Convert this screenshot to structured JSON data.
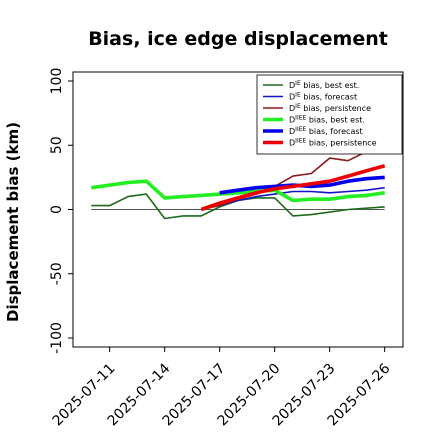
{
  "chart_data": {
    "type": "line",
    "title": "Bias, ice edge displacement",
    "xlabel": "",
    "ylabel": "Displacement bias (km)",
    "ylim": [
      -107,
      107
    ],
    "xlim": [
      "2025-07-09",
      "2025-07-27"
    ],
    "grid": false,
    "legend_position": "top-right",
    "zero_line": true,
    "x_ticks": [
      {
        "date": "2025-07-11",
        "label": "2025-07-11",
        "color": "#000000"
      },
      {
        "date": "2025-07-14",
        "label": "2025-07-14",
        "color": "#000000"
      },
      {
        "date": "2025-07-17",
        "label": "2025-07-17",
        "color": "#2a8a2a"
      },
      {
        "date": "2025-07-20",
        "label": "2025-07-20",
        "color": "#000000"
      },
      {
        "date": "2025-07-23",
        "label": "2025-07-23",
        "color": "#000000"
      },
      {
        "date": "2025-07-26",
        "label": "2025-07-26",
        "color": "#000000"
      }
    ],
    "y_ticks": [
      100,
      50,
      0,
      -50,
      -100
    ],
    "series": [
      {
        "name": "bias, best est.",
        "name_sup": "IE",
        "color": "#1e6b1e",
        "width": 1.6,
        "points": [
          [
            "2025-07-10",
            3
          ],
          [
            "2025-07-11",
            3
          ],
          [
            "2025-07-12",
            10
          ],
          [
            "2025-07-13",
            12
          ],
          [
            "2025-07-14",
            -7
          ],
          [
            "2025-07-15",
            -5
          ],
          [
            "2025-07-16",
            -5
          ],
          [
            "2025-07-17",
            2
          ],
          [
            "2025-07-18",
            7
          ],
          [
            "2025-07-19",
            9
          ],
          [
            "2025-07-20",
            9
          ],
          [
            "2025-07-21",
            -5
          ],
          [
            "2025-07-22",
            -4
          ],
          [
            "2025-07-23",
            -2
          ],
          [
            "2025-07-24",
            0
          ],
          [
            "2025-07-25",
            1
          ],
          [
            "2025-07-26",
            2
          ]
        ]
      },
      {
        "name": "bias, forecast",
        "name_sup": "IE",
        "color": "#1414c8",
        "width": 1.6,
        "points": [
          [
            "2025-07-17",
            3
          ],
          [
            "2025-07-18",
            7
          ],
          [
            "2025-07-19",
            10
          ],
          [
            "2025-07-20",
            12
          ],
          [
            "2025-07-21",
            14
          ],
          [
            "2025-07-22",
            14
          ],
          [
            "2025-07-23",
            13
          ],
          [
            "2025-07-24",
            14
          ],
          [
            "2025-07-25",
            15
          ],
          [
            "2025-07-26",
            17
          ]
        ]
      },
      {
        "name": "bias, persistence",
        "name_sup": "IE",
        "color": "#8b1a1a",
        "width": 1.6,
        "points": [
          [
            "2025-07-16",
            0
          ],
          [
            "2025-07-17",
            3
          ],
          [
            "2025-07-18",
            8
          ],
          [
            "2025-07-19",
            12
          ],
          [
            "2025-07-20",
            18
          ],
          [
            "2025-07-21",
            26
          ],
          [
            "2025-07-22",
            28
          ],
          [
            "2025-07-23",
            40
          ],
          [
            "2025-07-24",
            38
          ],
          [
            "2025-07-25",
            45
          ],
          [
            "2025-07-26",
            52
          ]
        ]
      },
      {
        "name": "bias, best est.",
        "name_sup": "IIEE",
        "color": "#22ee22",
        "width": 3.6,
        "points": [
          [
            "2025-07-10",
            17
          ],
          [
            "2025-07-11",
            19
          ],
          [
            "2025-07-12",
            21
          ],
          [
            "2025-07-13",
            22
          ],
          [
            "2025-07-14",
            9
          ],
          [
            "2025-07-15",
            10
          ],
          [
            "2025-07-16",
            11
          ],
          [
            "2025-07-17",
            12
          ],
          [
            "2025-07-18",
            13
          ],
          [
            "2025-07-19",
            14
          ],
          [
            "2025-07-20",
            15
          ],
          [
            "2025-07-21",
            7
          ],
          [
            "2025-07-22",
            8
          ],
          [
            "2025-07-23",
            8
          ],
          [
            "2025-07-24",
            10
          ],
          [
            "2025-07-25",
            11
          ],
          [
            "2025-07-26",
            13
          ]
        ]
      },
      {
        "name": "bias, forecast",
        "name_sup": "IIEE",
        "color": "#0000ee",
        "width": 3.6,
        "points": [
          [
            "2025-07-17",
            13
          ],
          [
            "2025-07-18",
            15
          ],
          [
            "2025-07-19",
            17
          ],
          [
            "2025-07-20",
            18
          ],
          [
            "2025-07-21",
            19
          ],
          [
            "2025-07-22",
            18
          ],
          [
            "2025-07-23",
            19
          ],
          [
            "2025-07-24",
            22
          ],
          [
            "2025-07-25",
            24
          ],
          [
            "2025-07-26",
            25
          ]
        ]
      },
      {
        "name": "bias, persistence",
        "name_sup": "IIEE",
        "color": "#ee0000",
        "width": 3.6,
        "points": [
          [
            "2025-07-16",
            0
          ],
          [
            "2025-07-17",
            5
          ],
          [
            "2025-07-18",
            9
          ],
          [
            "2025-07-19",
            13
          ],
          [
            "2025-07-20",
            16
          ],
          [
            "2025-07-21",
            18
          ],
          [
            "2025-07-22",
            20
          ],
          [
            "2025-07-23",
            22
          ],
          [
            "2025-07-24",
            26
          ],
          [
            "2025-07-25",
            30
          ],
          [
            "2025-07-26",
            34
          ]
        ]
      }
    ]
  }
}
